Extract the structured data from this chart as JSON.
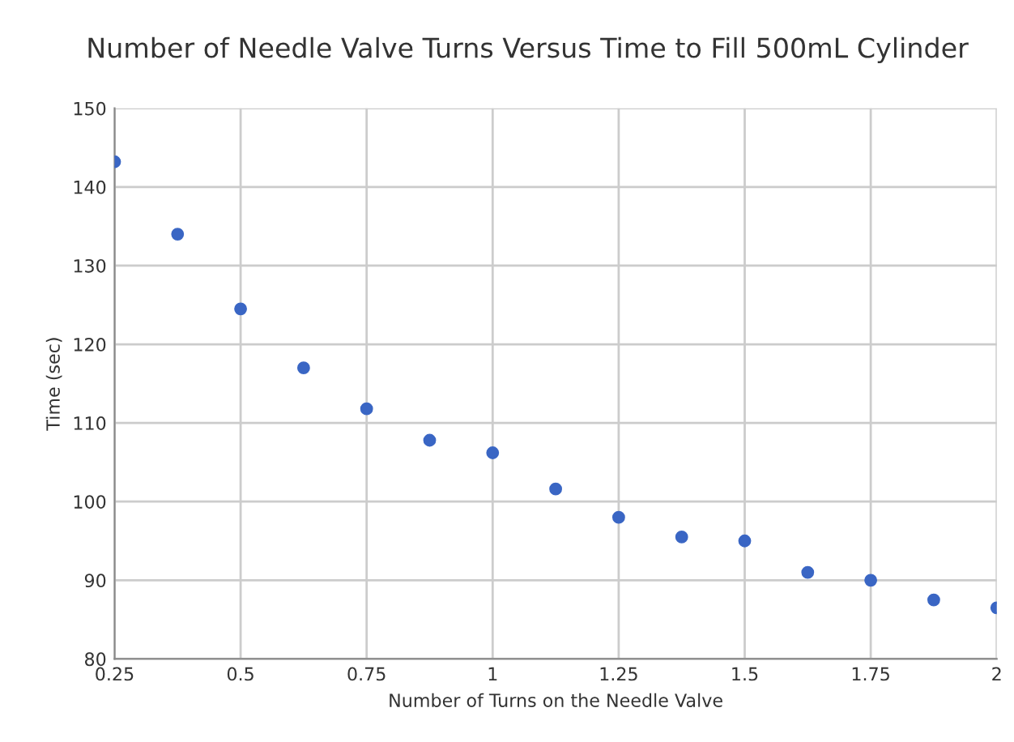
{
  "chart_data": {
    "type": "scatter",
    "title": "Number of Needle Valve Turns Versus Time to Fill 500mL Cylinder",
    "xlabel": "Number of Turns on the Needle Valve",
    "ylabel": "Time (sec)",
    "x": [
      0.25,
      0.375,
      0.5,
      0.625,
      0.75,
      0.875,
      1.0,
      1.125,
      1.25,
      1.375,
      1.5,
      1.625,
      1.75,
      1.875,
      2.0
    ],
    "series": [
      {
        "color": "#3a66c4",
        "values": [
          143.2,
          134,
          124.5,
          117,
          111.8,
          107.8,
          106.2,
          101.6,
          98,
          95.5,
          95,
          91,
          90,
          87.5,
          86.5
        ]
      }
    ],
    "xlim": [
      0.25,
      2
    ],
    "xticks": [
      0.25,
      0.5,
      0.75,
      1,
      1.25,
      1.5,
      1.75,
      2
    ],
    "ylim": [
      80,
      150
    ],
    "yticks": [
      80,
      90,
      100,
      110,
      120,
      130,
      140,
      150
    ],
    "grid": true,
    "marker": "circle",
    "legend": false
  }
}
